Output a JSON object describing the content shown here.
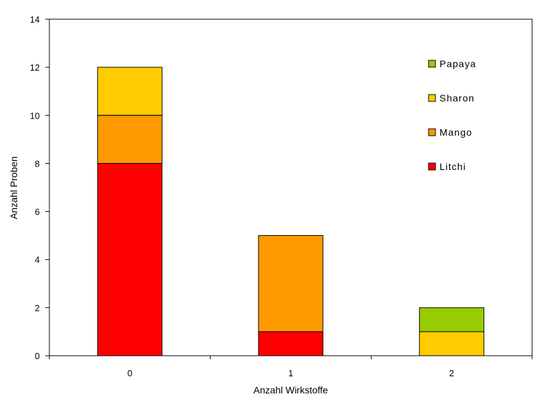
{
  "chart_data": {
    "type": "bar",
    "stacked": true,
    "categories": [
      "0",
      "1",
      "2"
    ],
    "series": [
      {
        "name": "Litchi",
        "values": [
          8,
          1,
          0
        ],
        "color": "#ff0000"
      },
      {
        "name": "Mango",
        "values": [
          2,
          4,
          0
        ],
        "color": "#ff9900"
      },
      {
        "name": "Sharon",
        "values": [
          2,
          0,
          1
        ],
        "color": "#ffcc00"
      },
      {
        "name": "Papaya",
        "values": [
          0,
          0,
          1
        ],
        "color": "#99cc00"
      }
    ],
    "title": "",
    "xlabel": "Anzahl Wirkstoffe",
    "ylabel": "Anzahl Proben",
    "ylim": [
      0,
      14
    ],
    "yticks": [
      0,
      2,
      4,
      6,
      8,
      10,
      12,
      14
    ],
    "grid": false,
    "legend_position": "top-right",
    "legend_order": [
      "Papaya",
      "Sharon",
      "Mango",
      "Litchi"
    ]
  }
}
